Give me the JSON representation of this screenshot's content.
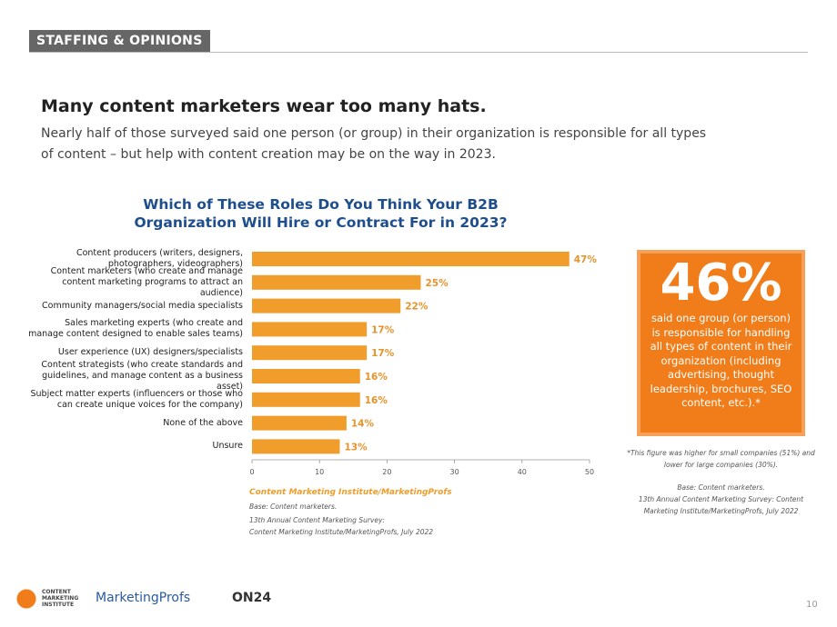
{
  "section_label": "STAFFING & OPINIONS",
  "headline": "Many content marketers wear too many hats.",
  "intro": "Nearly half of those surveyed said one person (or group) in their organization is responsible for all types of content – but help with content creation may be on the way in 2023.",
  "chart_data": {
    "type": "bar",
    "orientation": "horizontal",
    "title": "Which of These Roles Do You Think Your B2B Organization Will Hire or Contract For in 2023?",
    "categories": [
      "Content producers (writers, designers, photographers, videographers)",
      "Content marketers (who create and manage content marketing programs to attract an audience)",
      "Community managers/social media specialists",
      "Sales marketing experts (who create and manage content designed to enable sales teams)",
      "User experience (UX) designers/specialists",
      "Content strategists (who create standards and guidelines, and manage content as a business asset)",
      "Subject matter experts (influencers or those who can create unique voices for the company)",
      "None of the above",
      "Unsure"
    ],
    "values": [
      47,
      25,
      22,
      17,
      17,
      16,
      16,
      14,
      13
    ],
    "value_labels": [
      "47%",
      "25%",
      "22%",
      "17%",
      "17%",
      "16%",
      "16%",
      "14%",
      "13%"
    ],
    "color": "#f19d2c",
    "xlim": [
      0,
      50
    ],
    "xticks": [
      0,
      10,
      20,
      30,
      40,
      50
    ]
  },
  "chart_source": {
    "name": "Content Marketing Institute/MarketingProfs",
    "lines": [
      "Base: Content marketers.",
      "13th Annual Content Marketing Survey:",
      "Content Marketing Institute/MarketingProfs, July 2022"
    ]
  },
  "callout": {
    "stat": "46%",
    "text": "said one group (or person) is responsible for handling all types of content in their organization (including advertising, thought leadership, brochures, SEO content, etc.).*",
    "footnote": "*This figure was higher for small companies (51%) and lower for large companies (30%).",
    "base": "Base: Content marketers.",
    "source": "13th Annual Content Marketing Survey: Content Marketing Institute/MarketingProfs, July 2022"
  },
  "logos": [
    "CONTENT MARKETING INSTITUTE",
    "MarketingProfs",
    "ON24"
  ],
  "page_number": "10"
}
